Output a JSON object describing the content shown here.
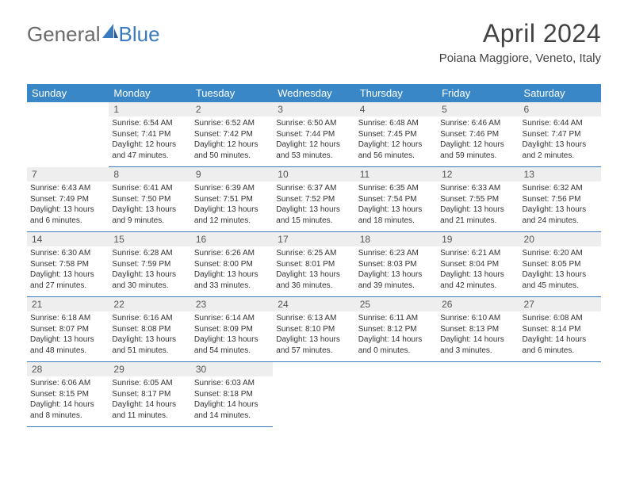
{
  "brand": {
    "part1": "General",
    "part2": "Blue",
    "sail_color": "#3a7bbf"
  },
  "title": "April 2024",
  "location": "Poiana Maggiore, Veneto, Italy",
  "days_of_week": [
    "Sunday",
    "Monday",
    "Tuesday",
    "Wednesday",
    "Thursday",
    "Friday",
    "Saturday"
  ],
  "colors": {
    "header_bar": "#3a87c8",
    "day_number_bg": "#eeeeee",
    "cell_border": "#3a7bbf",
    "text": "#333333"
  },
  "weeks": [
    [
      null,
      {
        "n": "1",
        "sr": "Sunrise: 6:54 AM",
        "ss": "Sunset: 7:41 PM",
        "dl": "Daylight: 12 hours and 47 minutes."
      },
      {
        "n": "2",
        "sr": "Sunrise: 6:52 AM",
        "ss": "Sunset: 7:42 PM",
        "dl": "Daylight: 12 hours and 50 minutes."
      },
      {
        "n": "3",
        "sr": "Sunrise: 6:50 AM",
        "ss": "Sunset: 7:44 PM",
        "dl": "Daylight: 12 hours and 53 minutes."
      },
      {
        "n": "4",
        "sr": "Sunrise: 6:48 AM",
        "ss": "Sunset: 7:45 PM",
        "dl": "Daylight: 12 hours and 56 minutes."
      },
      {
        "n": "5",
        "sr": "Sunrise: 6:46 AM",
        "ss": "Sunset: 7:46 PM",
        "dl": "Daylight: 12 hours and 59 minutes."
      },
      {
        "n": "6",
        "sr": "Sunrise: 6:44 AM",
        "ss": "Sunset: 7:47 PM",
        "dl": "Daylight: 13 hours and 2 minutes."
      }
    ],
    [
      {
        "n": "7",
        "sr": "Sunrise: 6:43 AM",
        "ss": "Sunset: 7:49 PM",
        "dl": "Daylight: 13 hours and 6 minutes."
      },
      {
        "n": "8",
        "sr": "Sunrise: 6:41 AM",
        "ss": "Sunset: 7:50 PM",
        "dl": "Daylight: 13 hours and 9 minutes."
      },
      {
        "n": "9",
        "sr": "Sunrise: 6:39 AM",
        "ss": "Sunset: 7:51 PM",
        "dl": "Daylight: 13 hours and 12 minutes."
      },
      {
        "n": "10",
        "sr": "Sunrise: 6:37 AM",
        "ss": "Sunset: 7:52 PM",
        "dl": "Daylight: 13 hours and 15 minutes."
      },
      {
        "n": "11",
        "sr": "Sunrise: 6:35 AM",
        "ss": "Sunset: 7:54 PM",
        "dl": "Daylight: 13 hours and 18 minutes."
      },
      {
        "n": "12",
        "sr": "Sunrise: 6:33 AM",
        "ss": "Sunset: 7:55 PM",
        "dl": "Daylight: 13 hours and 21 minutes."
      },
      {
        "n": "13",
        "sr": "Sunrise: 6:32 AM",
        "ss": "Sunset: 7:56 PM",
        "dl": "Daylight: 13 hours and 24 minutes."
      }
    ],
    [
      {
        "n": "14",
        "sr": "Sunrise: 6:30 AM",
        "ss": "Sunset: 7:58 PM",
        "dl": "Daylight: 13 hours and 27 minutes."
      },
      {
        "n": "15",
        "sr": "Sunrise: 6:28 AM",
        "ss": "Sunset: 7:59 PM",
        "dl": "Daylight: 13 hours and 30 minutes."
      },
      {
        "n": "16",
        "sr": "Sunrise: 6:26 AM",
        "ss": "Sunset: 8:00 PM",
        "dl": "Daylight: 13 hours and 33 minutes."
      },
      {
        "n": "17",
        "sr": "Sunrise: 6:25 AM",
        "ss": "Sunset: 8:01 PM",
        "dl": "Daylight: 13 hours and 36 minutes."
      },
      {
        "n": "18",
        "sr": "Sunrise: 6:23 AM",
        "ss": "Sunset: 8:03 PM",
        "dl": "Daylight: 13 hours and 39 minutes."
      },
      {
        "n": "19",
        "sr": "Sunrise: 6:21 AM",
        "ss": "Sunset: 8:04 PM",
        "dl": "Daylight: 13 hours and 42 minutes."
      },
      {
        "n": "20",
        "sr": "Sunrise: 6:20 AM",
        "ss": "Sunset: 8:05 PM",
        "dl": "Daylight: 13 hours and 45 minutes."
      }
    ],
    [
      {
        "n": "21",
        "sr": "Sunrise: 6:18 AM",
        "ss": "Sunset: 8:07 PM",
        "dl": "Daylight: 13 hours and 48 minutes."
      },
      {
        "n": "22",
        "sr": "Sunrise: 6:16 AM",
        "ss": "Sunset: 8:08 PM",
        "dl": "Daylight: 13 hours and 51 minutes."
      },
      {
        "n": "23",
        "sr": "Sunrise: 6:14 AM",
        "ss": "Sunset: 8:09 PM",
        "dl": "Daylight: 13 hours and 54 minutes."
      },
      {
        "n": "24",
        "sr": "Sunrise: 6:13 AM",
        "ss": "Sunset: 8:10 PM",
        "dl": "Daylight: 13 hours and 57 minutes."
      },
      {
        "n": "25",
        "sr": "Sunrise: 6:11 AM",
        "ss": "Sunset: 8:12 PM",
        "dl": "Daylight: 14 hours and 0 minutes."
      },
      {
        "n": "26",
        "sr": "Sunrise: 6:10 AM",
        "ss": "Sunset: 8:13 PM",
        "dl": "Daylight: 14 hours and 3 minutes."
      },
      {
        "n": "27",
        "sr": "Sunrise: 6:08 AM",
        "ss": "Sunset: 8:14 PM",
        "dl": "Daylight: 14 hours and 6 minutes."
      }
    ],
    [
      {
        "n": "28",
        "sr": "Sunrise: 6:06 AM",
        "ss": "Sunset: 8:15 PM",
        "dl": "Daylight: 14 hours and 8 minutes."
      },
      {
        "n": "29",
        "sr": "Sunrise: 6:05 AM",
        "ss": "Sunset: 8:17 PM",
        "dl": "Daylight: 14 hours and 11 minutes."
      },
      {
        "n": "30",
        "sr": "Sunrise: 6:03 AM",
        "ss": "Sunset: 8:18 PM",
        "dl": "Daylight: 14 hours and 14 minutes."
      },
      null,
      null,
      null,
      null
    ]
  ]
}
